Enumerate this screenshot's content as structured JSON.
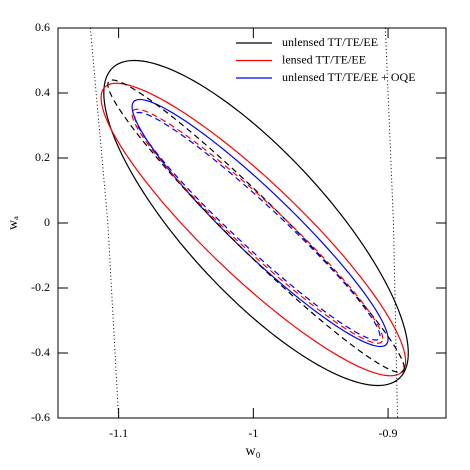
{
  "chart_data": {
    "type": "contour",
    "x_label": "w₀",
    "y_label": "wₐ",
    "xlim": [
      -1.145,
      -0.857
    ],
    "ylim": [
      -0.6,
      0.6
    ],
    "xticks": [
      -1.1,
      -1,
      -0.9
    ],
    "yticks": [
      -0.6,
      -0.4,
      -0.2,
      0,
      0.2,
      0.4,
      0.6
    ],
    "legend": "upper right",
    "series": [
      {
        "name": "unlensed TT/TE/EE",
        "color": "#000000",
        "shape": "ellipse",
        "dash": "solid",
        "cx": -0.998,
        "cy": 0.0,
        "sx": 0.113,
        "sy": 0.5,
        "rho": -0.8
      },
      {
        "name": "lensed TT/TE/EE",
        "color": "#ff0000",
        "shape": "ellipse",
        "dash": "solid",
        "cx": -1.0,
        "cy": -0.02,
        "sx": 0.113,
        "sy": 0.45,
        "rho": -0.9
      },
      {
        "name": "unlensed TT/TE/EE + OQE",
        "color": "#0000ff",
        "shape": "ellipse",
        "dash": "solid",
        "cx": -0.995,
        "cy": 0.0,
        "sx": 0.095,
        "sy": 0.38,
        "rho": -0.94
      },
      {
        "color": "#000000",
        "shape": "ellipse",
        "dash": "dashed",
        "cx": -0.998,
        "cy": -0.01,
        "sx": 0.11,
        "sy": 0.45,
        "rho": -0.97
      },
      {
        "color": "#ff0000",
        "shape": "ellipse",
        "dash": "dashed",
        "cx": -0.997,
        "cy": -0.01,
        "sx": 0.093,
        "sy": 0.36,
        "rho": -0.96
      },
      {
        "color": "#0000ff",
        "shape": "ellipse",
        "dash": "dashed",
        "cx": -0.997,
        "cy": -0.01,
        "sx": 0.091,
        "sy": 0.35,
        "rho": -0.965
      },
      {
        "color": "#000000",
        "shape": "curve",
        "dash": "dotted",
        "x": [
          -1.121,
          -1.108,
          -1.1
        ],
        "y": [
          0.6,
          0.0,
          -0.6
        ]
      },
      {
        "color": "#000000",
        "shape": "curve",
        "dash": "dotted",
        "x": [
          -0.902,
          -0.896,
          -0.893
        ],
        "y": [
          0.6,
          0.0,
          -0.6
        ]
      }
    ]
  }
}
